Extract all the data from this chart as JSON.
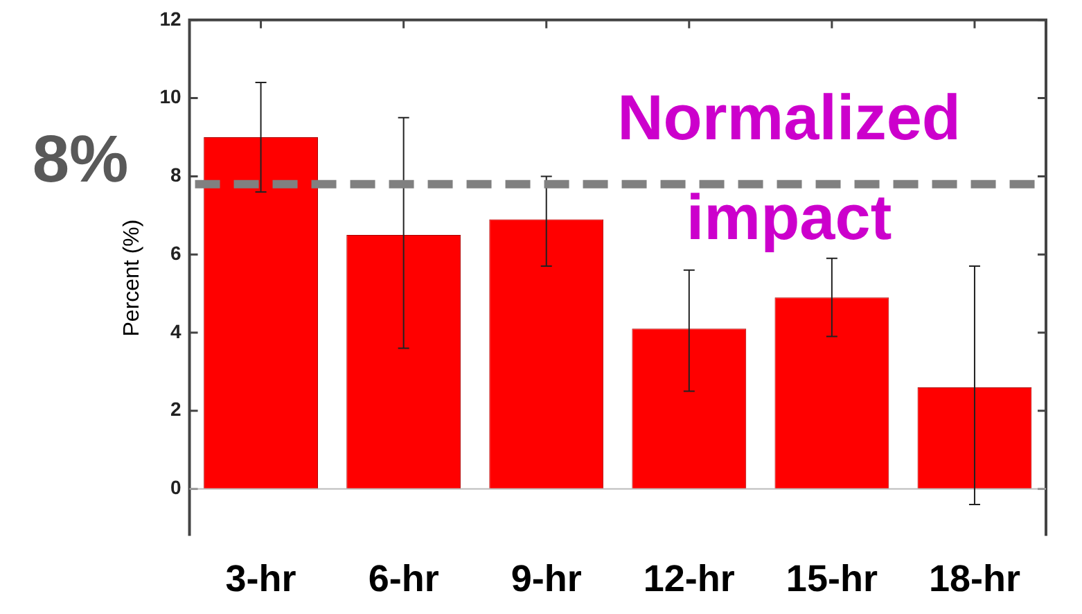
{
  "chart_data": {
    "type": "bar",
    "ylabel": "Percent (%)",
    "categories": [
      "3-hr",
      "6-hr",
      "9-hr",
      "12-hr",
      "15-hr",
      "18-hr"
    ],
    "values": [
      9.0,
      6.5,
      6.9,
      4.1,
      4.9,
      2.6
    ],
    "errors": [
      [
        7.6,
        10.4
      ],
      [
        3.6,
        9.5
      ],
      [
        5.7,
        8.0
      ],
      [
        2.5,
        5.6
      ],
      [
        3.9,
        5.9
      ],
      [
        -0.4,
        5.7
      ]
    ],
    "color": "#ff0000",
    "ylim": [
      -1.2,
      12
    ],
    "yticks": [
      0,
      2,
      4,
      6,
      8,
      10,
      12
    ],
    "grid": false,
    "legend": false,
    "ref_lines": [
      {
        "axis": "y",
        "value": 7.8,
        "label": "Normalized impact",
        "color": "#808080",
        "line_style": "dashed"
      }
    ],
    "annotations": [
      "8%"
    ]
  }
}
